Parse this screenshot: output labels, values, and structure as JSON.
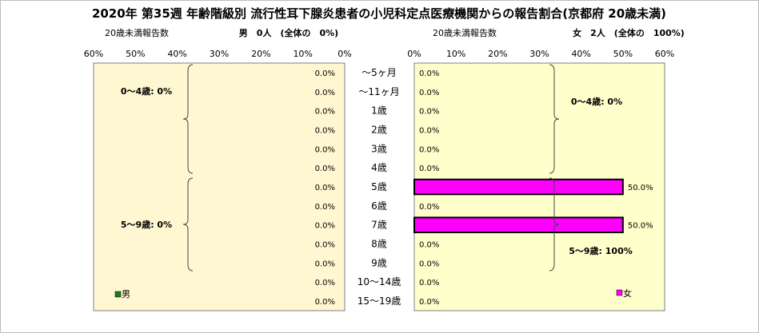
{
  "title": "2020年 第35週 年齢階級別 流行性耳下腺炎患者の小児科定点医療機関からの報告割合(京都府 20歳未満)",
  "left_panel": {
    "header_label": "20歳未満報告数",
    "header_info": "男　0人　(全体の　0%)"
  },
  "right_panel": {
    "header_label": "20歳未満報告数",
    "header_info": "女　2人　(全体の　100%)"
  },
  "colors": {
    "male": "#1f7a1f",
    "female": "#ff00ff",
    "plot_bg_left": "#fff7d1",
    "plot_bg_right": "#ffffcc"
  },
  "chart_data": {
    "type": "bar",
    "orientation": "horizontal",
    "categories": [
      "～5ヶ月",
      "～11ヶ月",
      "1歳",
      "2歳",
      "3歳",
      "4歳",
      "5歳",
      "6歳",
      "7歳",
      "8歳",
      "9歳",
      "10～14歳",
      "15～19歳"
    ],
    "xlim": [
      0,
      60
    ],
    "ticks": [
      "0%",
      "10%",
      "20%",
      "30%",
      "40%",
      "50%",
      "60%"
    ],
    "left_ticks": [
      "60%",
      "50%",
      "40%",
      "30%",
      "20%",
      "10%",
      "0%"
    ],
    "series": [
      {
        "name": "男",
        "values": [
          0,
          0,
          0,
          0,
          0,
          0,
          0,
          0,
          0,
          0,
          0,
          0,
          0
        ],
        "labels": [
          "0.0%",
          "0.0%",
          "0.0%",
          "0.0%",
          "0.0%",
          "0.0%",
          "0.0%",
          "0.0%",
          "0.0%",
          "0.0%",
          "0.0%",
          "0.0%",
          "0.0%"
        ]
      },
      {
        "name": "女",
        "values": [
          0,
          0,
          0,
          0,
          0,
          0,
          50,
          0,
          50,
          0,
          0,
          0,
          0
        ],
        "labels": [
          "0.0%",
          "0.0%",
          "0.0%",
          "0.0%",
          "0.0%",
          "0.0%",
          "50.0%",
          "0.0%",
          "50.0%",
          "0.0%",
          "0.0%",
          "0.0%",
          "0.0%"
        ]
      }
    ],
    "groups": {
      "male": [
        "0～4歳: 0%",
        "5～9歳: 0%"
      ],
      "female": [
        "0～4歳: 0%",
        "5～9歳: 100%"
      ]
    },
    "legend": {
      "male": "男",
      "female": "女"
    }
  }
}
